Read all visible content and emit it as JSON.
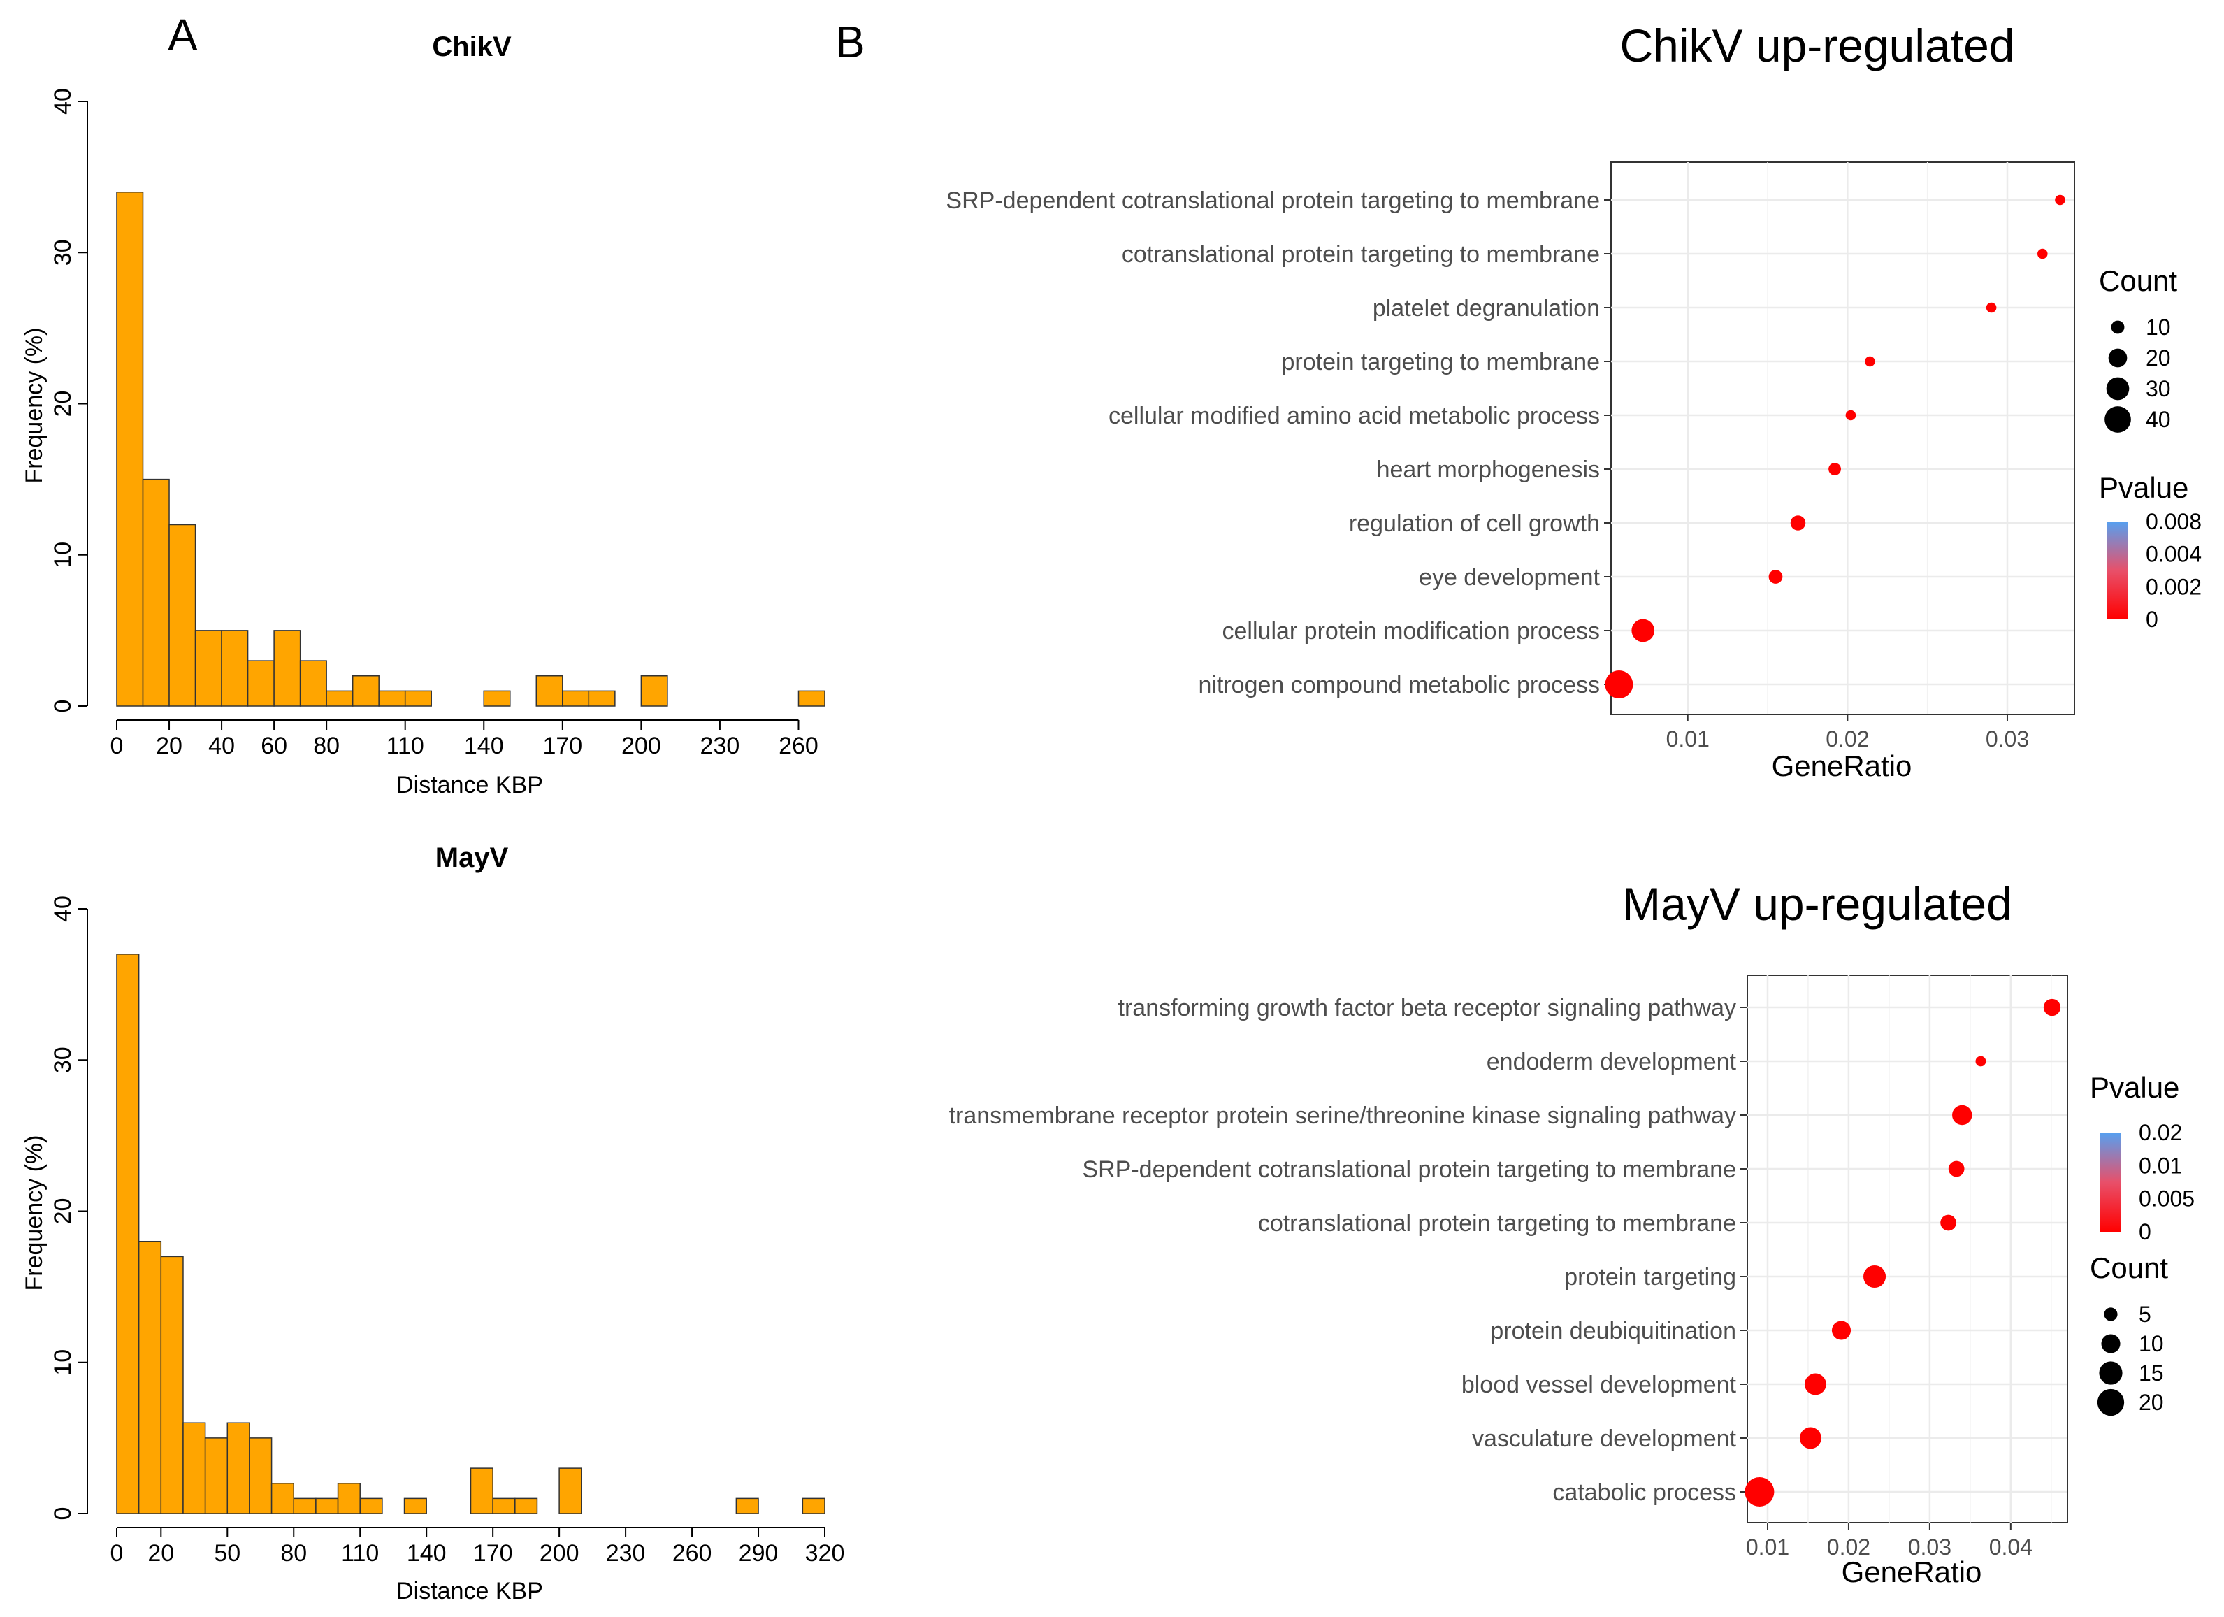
{
  "panels": {
    "a": "A",
    "b": "B"
  },
  "colors": {
    "bar_fill": "#FFA500",
    "bar_stroke": "#333333",
    "dot_low": "#FF0000",
    "dot_high": "#56A0F0",
    "grid": "#EBEBEB"
  },
  "chart_data": [
    {
      "type": "bar",
      "title": "ChikV",
      "xlabel": "Distance KBP",
      "ylabel": "Frequency (%)",
      "bin_width": 10,
      "x_range": [
        0,
        270
      ],
      "ylim": [
        0,
        40
      ],
      "yticks": [
        0,
        10,
        20,
        30,
        40
      ],
      "xticks": [
        0,
        20,
        40,
        60,
        80,
        110,
        140,
        170,
        200,
        230,
        260
      ],
      "values": [
        34,
        15,
        12,
        5,
        5,
        3,
        5,
        3,
        1,
        2,
        1,
        1,
        0,
        0,
        1,
        0,
        2,
        1,
        1,
        0,
        2,
        0,
        0,
        0,
        0,
        0,
        1
      ]
    },
    {
      "type": "bar",
      "title": "MayV",
      "xlabel": "Distance KBP",
      "ylabel": "Frequency (%)",
      "bin_width": 10,
      "x_range": [
        0,
        320
      ],
      "ylim": [
        0,
        40
      ],
      "yticks": [
        0,
        10,
        20,
        30,
        40
      ],
      "xticks": [
        0,
        20,
        50,
        80,
        110,
        140,
        170,
        200,
        230,
        260,
        290,
        320
      ],
      "values": [
        37,
        18,
        17,
        6,
        5,
        6,
        5,
        2,
        1,
        1,
        2,
        1,
        0,
        1,
        0,
        0,
        3,
        1,
        1,
        0,
        3,
        0,
        0,
        0,
        0,
        0,
        0,
        0,
        1,
        0,
        0,
        1
      ]
    },
    {
      "type": "scatter",
      "title": "ChikV up-regulated",
      "xlabel": "GeneRatio",
      "xlim": [
        0.0052,
        0.0342
      ],
      "xticks": [
        0.01,
        0.02,
        0.03
      ],
      "xtick_labels": [
        "0.01",
        "0.02",
        "0.03"
      ],
      "terms": [
        {
          "term": "SRP-dependent cotranslational protein targeting to membrane",
          "gene_ratio": 0.0333,
          "count": 6,
          "pvalue": 0.0003
        },
        {
          "term": "cotranslational protein targeting to membrane",
          "gene_ratio": 0.0322,
          "count": 6,
          "pvalue": 0.0003
        },
        {
          "term": "platelet degranulation",
          "gene_ratio": 0.029,
          "count": 6,
          "pvalue": 0.0003
        },
        {
          "term": "protein targeting to membrane",
          "gene_ratio": 0.0214,
          "count": 6,
          "pvalue": 0.0003
        },
        {
          "term": "cellular modified amino acid metabolic process",
          "gene_ratio": 0.0202,
          "count": 6,
          "pvalue": 0.0003
        },
        {
          "term": "heart morphogenesis",
          "gene_ratio": 0.0192,
          "count": 9,
          "pvalue": 0.0003
        },
        {
          "term": "regulation of cell growth",
          "gene_ratio": 0.0169,
          "count": 13,
          "pvalue": 0.0003
        },
        {
          "term": "eye development",
          "gene_ratio": 0.0155,
          "count": 11,
          "pvalue": 0.0003
        },
        {
          "term": "cellular protein modification process",
          "gene_ratio": 0.0072,
          "count": 30,
          "pvalue": 0.0003
        },
        {
          "term": "nitrogen compound metabolic process",
          "gene_ratio": 0.0057,
          "count": 45,
          "pvalue": 0.0003
        }
      ],
      "legend": {
        "size_title": "Count",
        "size_values": [
          10,
          20,
          30,
          40
        ],
        "color_title": "Pvalue",
        "color_labels": [
          "0.008",
          "0.004",
          "0.002",
          "0"
        ]
      }
    },
    {
      "type": "scatter",
      "title": "MayV up-regulated",
      "xlabel": "GeneRatio",
      "xlim": [
        0.0075,
        0.047
      ],
      "xticks": [
        0.01,
        0.02,
        0.03,
        0.04
      ],
      "xtick_labels": [
        "0.01",
        "0.02",
        "0.03",
        "0.04"
      ],
      "terms": [
        {
          "term": "transforming growth factor beta receptor signaling pathway",
          "gene_ratio": 0.0451,
          "count": 8,
          "pvalue": 0.0005
        },
        {
          "term": "endoderm development",
          "gene_ratio": 0.0363,
          "count": 3,
          "pvalue": 0.0005
        },
        {
          "term": "transmembrane receptor protein serine/threonine kinase signaling pathway",
          "gene_ratio": 0.034,
          "count": 11,
          "pvalue": 0.0005
        },
        {
          "term": "SRP-dependent cotranslational protein targeting to membrane",
          "gene_ratio": 0.0333,
          "count": 7,
          "pvalue": 0.0005
        },
        {
          "term": "cotranslational protein targeting to membrane",
          "gene_ratio": 0.0323,
          "count": 7,
          "pvalue": 0.0005
        },
        {
          "term": "protein targeting",
          "gene_ratio": 0.0232,
          "count": 14,
          "pvalue": 0.0005
        },
        {
          "term": "protein deubiquitination",
          "gene_ratio": 0.0191,
          "count": 10,
          "pvalue": 0.0005
        },
        {
          "term": "blood vessel development",
          "gene_ratio": 0.0159,
          "count": 13,
          "pvalue": 0.0005
        },
        {
          "term": "vasculature development",
          "gene_ratio": 0.0153,
          "count": 13,
          "pvalue": 0.0005
        },
        {
          "term": "catabolic process",
          "gene_ratio": 0.009,
          "count": 24,
          "pvalue": 0.0005
        }
      ],
      "legend": {
        "color_title": "Pvalue",
        "color_labels": [
          "0.02",
          "0.01",
          "0.005",
          "0"
        ],
        "size_title": "Count",
        "size_values": [
          5,
          10,
          15,
          20
        ]
      }
    }
  ]
}
